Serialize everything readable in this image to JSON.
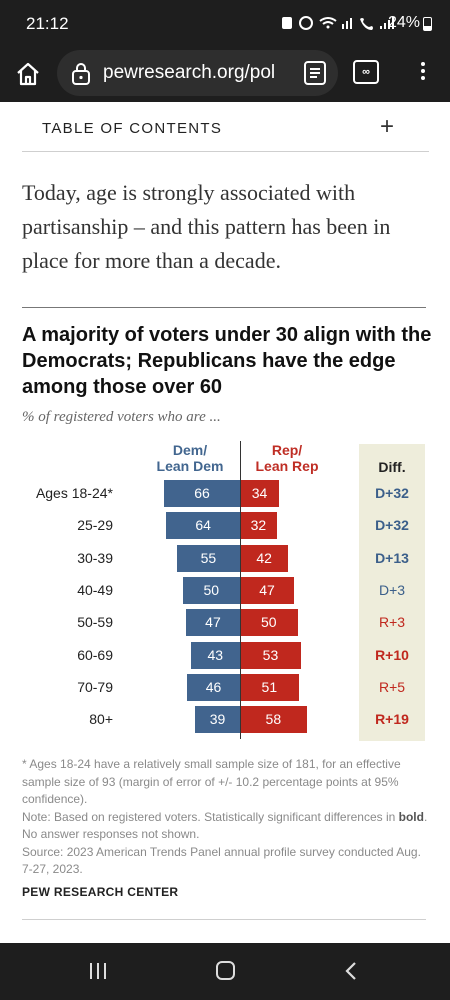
{
  "status": {
    "time": "21:12",
    "battery": "24%"
  },
  "browser": {
    "url": "pewresearch.org/pol",
    "tabs_label": "∞"
  },
  "toc": {
    "label": "TABLE OF CONTENTS",
    "toggle": "+"
  },
  "intro": "Today, age is strongly associated with partisanship – and this pattern has been in place for more than a decade.",
  "chart_title": "A majority of voters under 30 align with the Democrats; Republicans have the edge among those over 60",
  "chart_subtitle": "% of registered voters who are ...",
  "colors": {
    "dem": "#41648e",
    "rep": "#c0281e",
    "diff_bg": "#eeeddb"
  },
  "chart_data": {
    "type": "bar",
    "title": "A majority of voters under 30 align with the Democrats; Republicans have the edge among those over 60",
    "subtitle": "% of registered voters who are ...",
    "categories": [
      "Ages 18-24*",
      "25-29",
      "30-39",
      "40-49",
      "50-59",
      "60-69",
      "70-79",
      "80+"
    ],
    "series": [
      {
        "name": "Dem/ Lean Dem",
        "values": [
          66,
          64,
          55,
          50,
          47,
          43,
          46,
          39
        ]
      },
      {
        "name": "Rep/ Lean Rep",
        "values": [
          34,
          32,
          42,
          47,
          50,
          53,
          51,
          58
        ]
      }
    ],
    "diff_header": "Diff.",
    "diff": [
      "D+32",
      "D+32",
      "D+13",
      "D+3",
      "R+3",
      "R+10",
      "R+5",
      "R+19"
    ],
    "diff_bold": [
      true,
      true,
      true,
      false,
      false,
      true,
      false,
      true
    ]
  },
  "headers": {
    "dem_line1": "Dem/",
    "dem_line2": "Lean Dem",
    "rep_line1": "Rep/",
    "rep_line2": "Lean Rep"
  },
  "notes": {
    "footnote": "* Ages 18-24 have a relatively small sample size of 181, for an effective sample size of 93 (margin of error of +/- 10.2 percentage points at 95% confidence).",
    "note_prefix": "Note: Based on registered voters. Statistically significant differences in ",
    "note_bold": "bold",
    "note_suffix": ". No answer responses not shown.",
    "source": "Source: 2023 American Trends Panel annual profile survey conducted Aug. 7-27, 2023.",
    "org": "PEW RESEARCH CENTER"
  }
}
